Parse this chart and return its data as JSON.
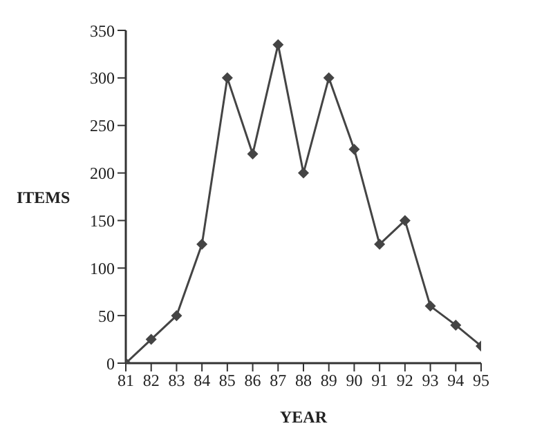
{
  "chart_data": {
    "type": "line",
    "xlabel": "YEAR",
    "ylabel": "ITEMS",
    "x": [
      81,
      82,
      83,
      84,
      85,
      86,
      87,
      88,
      89,
      90,
      91,
      92,
      93,
      94,
      95
    ],
    "series": [
      {
        "color": "#444444",
        "values": [
          0,
          25,
          50,
          125,
          300,
          220,
          335,
          200,
          300,
          225,
          125,
          150,
          60,
          40,
          18
        ]
      }
    ],
    "xlim": [
      81,
      95
    ],
    "xticks": [
      81,
      82,
      83,
      84,
      85,
      86,
      87,
      88,
      89,
      90,
      91,
      92,
      93,
      94,
      95
    ],
    "ylim": [
      0,
      350
    ],
    "yticks": [
      0,
      50,
      100,
      150,
      200,
      250,
      300,
      350
    ],
    "grid": false,
    "legend": false,
    "marker": "diamond",
    "line_style": "solid"
  }
}
